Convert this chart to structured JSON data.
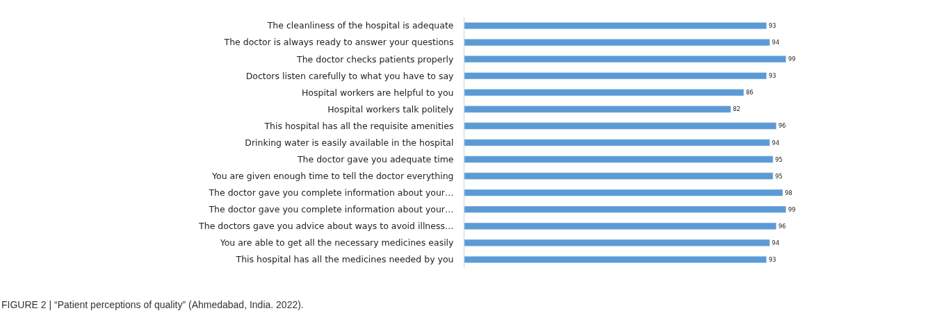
{
  "chart_data": {
    "type": "bar",
    "orientation": "horizontal",
    "categories": [
      "The cleanliness of the hospital is adequate",
      "The doctor is always ready to answer your questions",
      "The doctor checks patients properly",
      "Doctors listen carefully to what you have to say",
      "Hospital workers are helpful to you",
      "Hospital workers talk politely",
      "This hospital has all the requisite amenities",
      "Drinking water is easily available in the hospital",
      "The doctor gave you adequate time",
      "You are given enough time to tell the doctor everything",
      "The doctor gave you complete information about your…",
      "The doctor gave you complete information about your…",
      "The doctors gave you advice about ways to avoid illness…",
      "You are able to get all the necessary medicines easily",
      "This hospital has all the medicines needed by you"
    ],
    "values": [
      93,
      94,
      99,
      93,
      86,
      82,
      96,
      94,
      95,
      95,
      98,
      99,
      96,
      94,
      93
    ],
    "color": "#5b9bd5",
    "data_labels": true,
    "tick_labels": "y",
    "annotations": [
      "FIGURE 2 | “Patient perceptions of quality” (Ahmedabad, India. 2022)."
    ]
  }
}
